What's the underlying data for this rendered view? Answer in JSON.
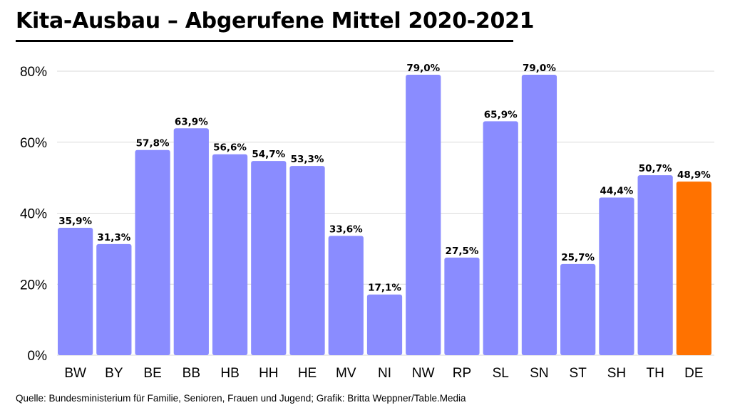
{
  "title": "Kita-Ausbau – Abgerufene Mittel 2020-2021",
  "source": "Quelle: Bundesministerium für Familie, Senioren, Frauen und Jugend; Grafik: Britta Weppner/Table.Media",
  "colors": {
    "bar": "#8a8cff",
    "highlight": "#ff7200",
    "grid": "#d9d9d9"
  },
  "chart_data": {
    "type": "bar",
    "categories": [
      "BW",
      "BY",
      "BE",
      "BB",
      "HB",
      "HH",
      "HE",
      "MV",
      "NI",
      "NW",
      "RP",
      "SL",
      "SN",
      "ST",
      "SH",
      "TH",
      "DE"
    ],
    "values": [
      35.9,
      31.3,
      57.8,
      63.9,
      56.6,
      54.7,
      53.3,
      33.6,
      17.1,
      79.0,
      27.5,
      65.9,
      79.0,
      25.7,
      44.4,
      50.7,
      48.9
    ],
    "data_labels": [
      "35,9%",
      "31,3%",
      "57,8%",
      "63,9%",
      "56,6%",
      "54,7%",
      "53,3%",
      "33,6%",
      "17,1%",
      "79,0%",
      "27,5%",
      "65,9%",
      "79,0%",
      "25,7%",
      "44,4%",
      "50,7%",
      "48,9%"
    ],
    "highlight_category": "DE",
    "y_ticks": [
      0,
      20,
      40,
      60,
      80
    ],
    "y_tick_labels": [
      "0%",
      "20%",
      "40%",
      "60%",
      "80%"
    ],
    "ylim": [
      0,
      80
    ],
    "grid": true,
    "xlabel": "",
    "ylabel": ""
  }
}
